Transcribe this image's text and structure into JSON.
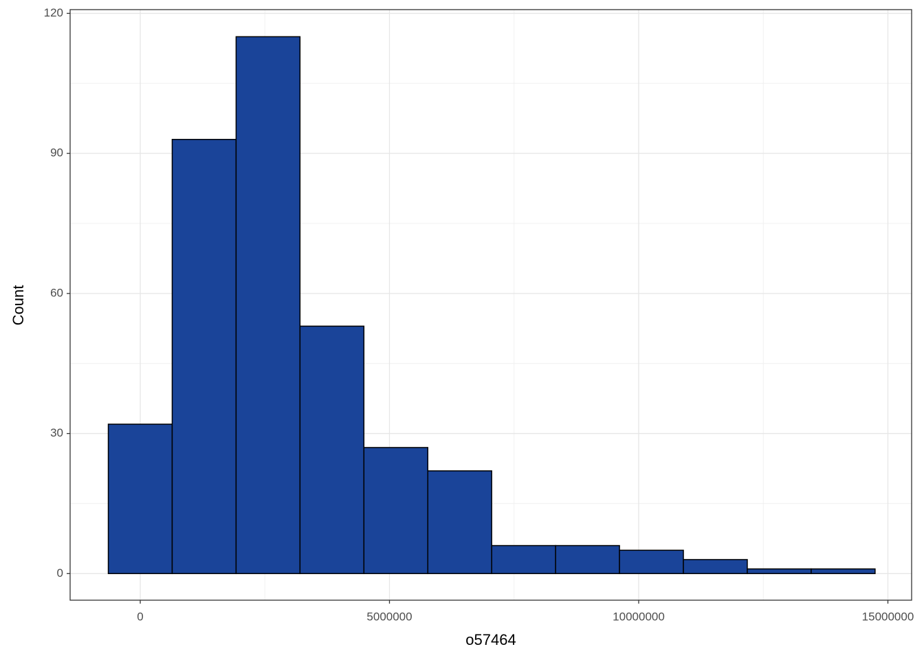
{
  "chart_data": {
    "type": "histogram",
    "x_label": "o57464",
    "y_label": "Count",
    "bins": [
      -641000,
      641000,
      1923000,
      3205000,
      4487000,
      5769000,
      7051000,
      8333000,
      9615000,
      10897000,
      12179000,
      13461000,
      14743000
    ],
    "values": [
      32,
      93,
      115,
      53,
      27,
      22,
      6,
      6,
      5,
      3,
      1,
      1
    ],
    "color": "#1a4499",
    "edge_color": "#000000",
    "xlim": [
      -1407000,
      15476000
    ],
    "ylim": [
      -5.7,
      120.8
    ],
    "xticks": [
      0,
      5000000,
      10000000,
      15000000
    ],
    "yticks": [
      0,
      30,
      60,
      90,
      120
    ],
    "xminorticks": [
      2500000,
      7500000,
      12500000
    ],
    "yminorticks": [
      15,
      45,
      75,
      105
    ],
    "grid": true
  }
}
